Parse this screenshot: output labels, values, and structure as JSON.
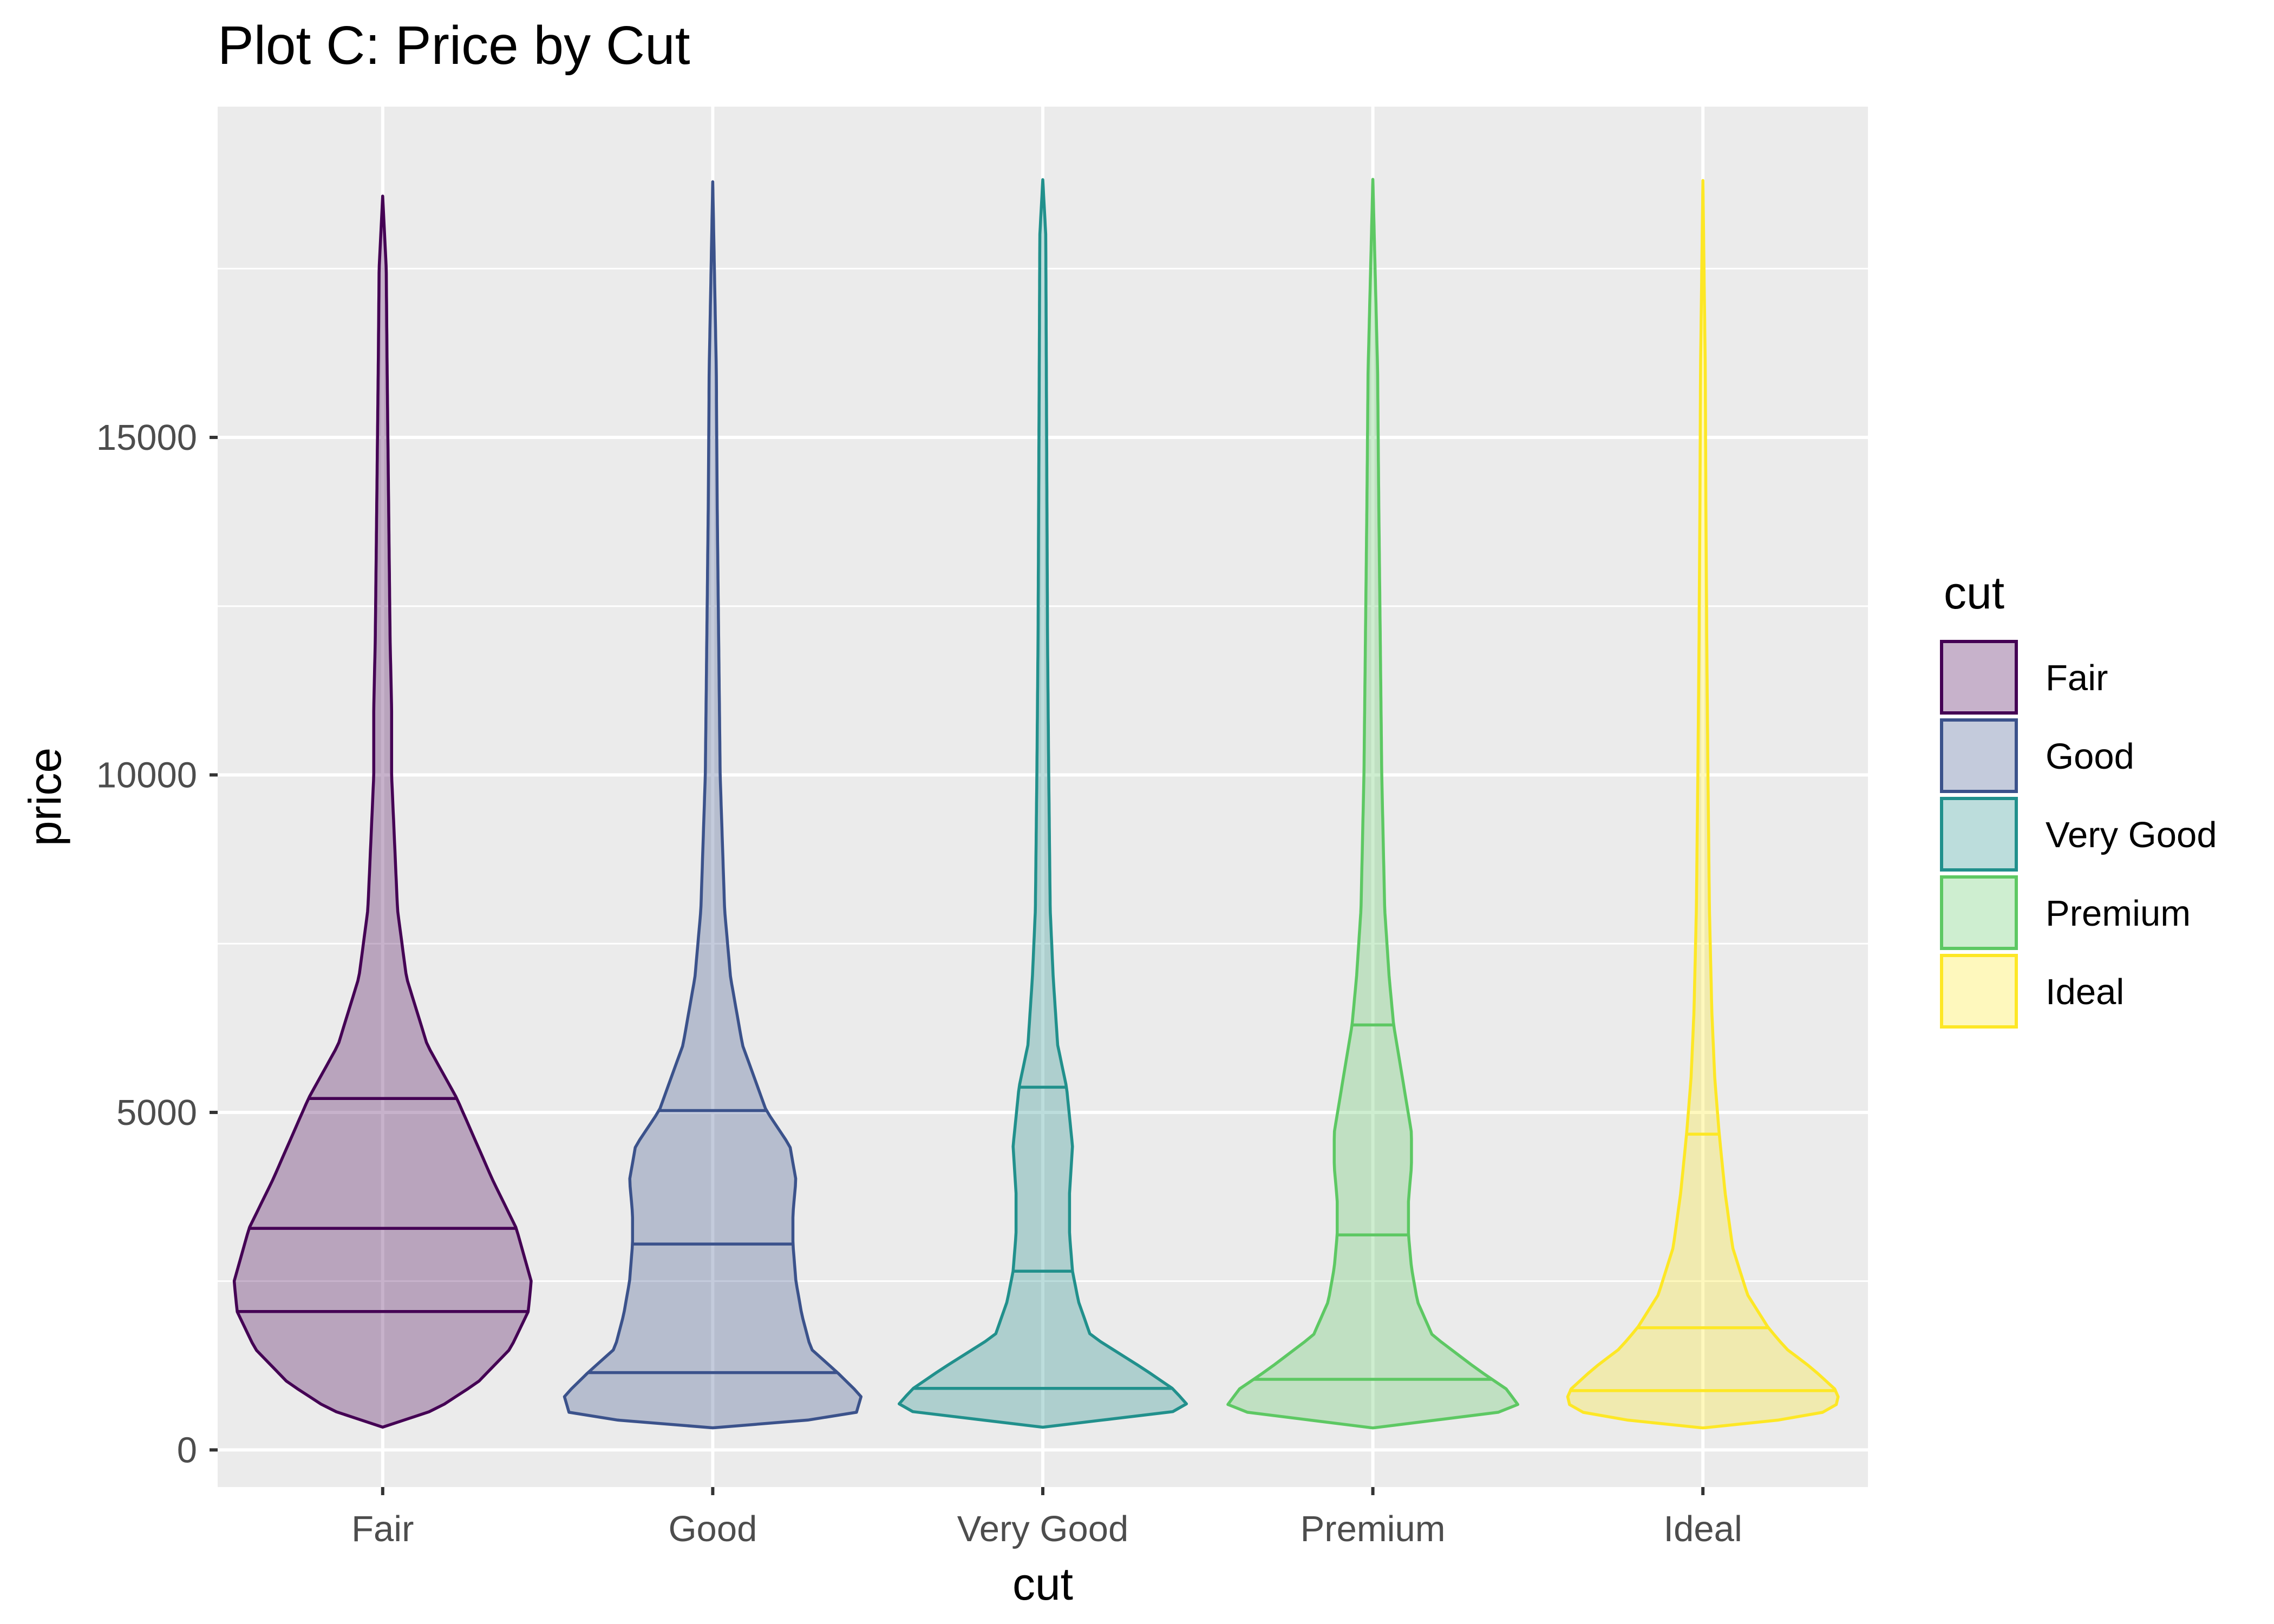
{
  "chart_data": {
    "type": "violin",
    "title": "Plot C: Price by Cut",
    "xlabel": "cut",
    "ylabel": "price",
    "categories": [
      "Fair",
      "Good",
      "Very Good",
      "Premium",
      "Ideal"
    ],
    "ylim": [
      -550,
      19900
    ],
    "yticks": [
      0,
      5000,
      10000,
      15000
    ],
    "grid": true,
    "legend": {
      "title": "cut",
      "placement": "right"
    },
    "colors": {
      "Fair": "#440154",
      "Good": "#3b528b",
      "Very Good": "#21908c",
      "Premium": "#5dc863",
      "Ideal": "#fde725"
    },
    "series": [
      {
        "name": "Fair",
        "min": 337,
        "max": 18574,
        "quantiles": {
          "q25": 2050,
          "median": 3282,
          "q75": 5206
        },
        "density_profile": [
          [
            337,
            0
          ],
          [
            600,
            0.18
          ],
          [
            1000,
            0.32
          ],
          [
            1500,
            0.43
          ],
          [
            2050,
            0.49
          ],
          [
            2500,
            0.5
          ],
          [
            3282,
            0.45
          ],
          [
            4000,
            0.37
          ],
          [
            5206,
            0.25
          ],
          [
            6000,
            0.15
          ],
          [
            7000,
            0.08
          ],
          [
            8000,
            0.05
          ],
          [
            9000,
            0.04
          ],
          [
            10000,
            0.03
          ],
          [
            11000,
            0.03
          ],
          [
            12000,
            0.025
          ],
          [
            14000,
            0.02
          ],
          [
            16000,
            0.015
          ],
          [
            17500,
            0.012
          ],
          [
            18574,
            0
          ]
        ]
      },
      {
        "name": "Good",
        "min": 327,
        "max": 18788,
        "quantiles": {
          "q25": 1145,
          "median": 3050,
          "q75": 5028
        },
        "density_profile": [
          [
            327,
            0
          ],
          [
            500,
            0.48
          ],
          [
            800,
            0.5
          ],
          [
            1145,
            0.42
          ],
          [
            1500,
            0.33
          ],
          [
            2000,
            0.3
          ],
          [
            2500,
            0.28
          ],
          [
            3050,
            0.27
          ],
          [
            3500,
            0.27
          ],
          [
            4000,
            0.28
          ],
          [
            4500,
            0.26
          ],
          [
            5028,
            0.18
          ],
          [
            6000,
            0.1
          ],
          [
            7000,
            0.06
          ],
          [
            8000,
            0.04
          ],
          [
            10000,
            0.025
          ],
          [
            12000,
            0.02
          ],
          [
            14000,
            0.015
          ],
          [
            16000,
            0.012
          ],
          [
            18788,
            0
          ]
        ]
      },
      {
        "name": "Very Good",
        "min": 336,
        "max": 18818,
        "quantiles": {
          "q25": 912,
          "median": 2648,
          "q75": 5373
        },
        "density_profile": [
          [
            336,
            0
          ],
          [
            600,
            0.5
          ],
          [
            900,
            0.44
          ],
          [
            1200,
            0.34
          ],
          [
            1700,
            0.16
          ],
          [
            2200,
            0.12
          ],
          [
            2648,
            0.1
          ],
          [
            3200,
            0.09
          ],
          [
            3800,
            0.09
          ],
          [
            4500,
            0.1
          ],
          [
            5373,
            0.08
          ],
          [
            6000,
            0.05
          ],
          [
            7000,
            0.035
          ],
          [
            8000,
            0.025
          ],
          [
            10000,
            0.02
          ],
          [
            12000,
            0.016
          ],
          [
            14000,
            0.014
          ],
          [
            16000,
            0.012
          ],
          [
            18000,
            0.01
          ],
          [
            18818,
            0
          ]
        ]
      },
      {
        "name": "Premium",
        "min": 326,
        "max": 18823,
        "quantiles": {
          "q25": 1046,
          "median": 3185,
          "q75": 6296
        },
        "density_profile": [
          [
            326,
            0
          ],
          [
            600,
            0.5
          ],
          [
            900,
            0.45
          ],
          [
            1200,
            0.35
          ],
          [
            1700,
            0.2
          ],
          [
            2200,
            0.15
          ],
          [
            2700,
            0.13
          ],
          [
            3185,
            0.12
          ],
          [
            3700,
            0.12
          ],
          [
            4200,
            0.13
          ],
          [
            4700,
            0.13
          ],
          [
            5500,
            0.1
          ],
          [
            6296,
            0.07
          ],
          [
            7000,
            0.055
          ],
          [
            8000,
            0.04
          ],
          [
            10000,
            0.03
          ],
          [
            12000,
            0.025
          ],
          [
            14000,
            0.02
          ],
          [
            16000,
            0.016
          ],
          [
            18823,
            0
          ]
        ]
      },
      {
        "name": "Ideal",
        "min": 326,
        "max": 18806,
        "quantiles": {
          "q25": 878,
          "median": 1810,
          "q75": 4678
        },
        "density_profile": [
          [
            326,
            0
          ],
          [
            500,
            0.38
          ],
          [
            700,
            0.46
          ],
          [
            878,
            0.45
          ],
          [
            1200,
            0.37
          ],
          [
            1500,
            0.28
          ],
          [
            1810,
            0.22
          ],
          [
            2300,
            0.15
          ],
          [
            3000,
            0.1
          ],
          [
            3800,
            0.075
          ],
          [
            4678,
            0.055
          ],
          [
            5500,
            0.04
          ],
          [
            6500,
            0.03
          ],
          [
            8000,
            0.022
          ],
          [
            10000,
            0.017
          ],
          [
            12000,
            0.013
          ],
          [
            14000,
            0.01
          ],
          [
            16000,
            0.008
          ],
          [
            18806,
            0
          ]
        ]
      }
    ]
  }
}
